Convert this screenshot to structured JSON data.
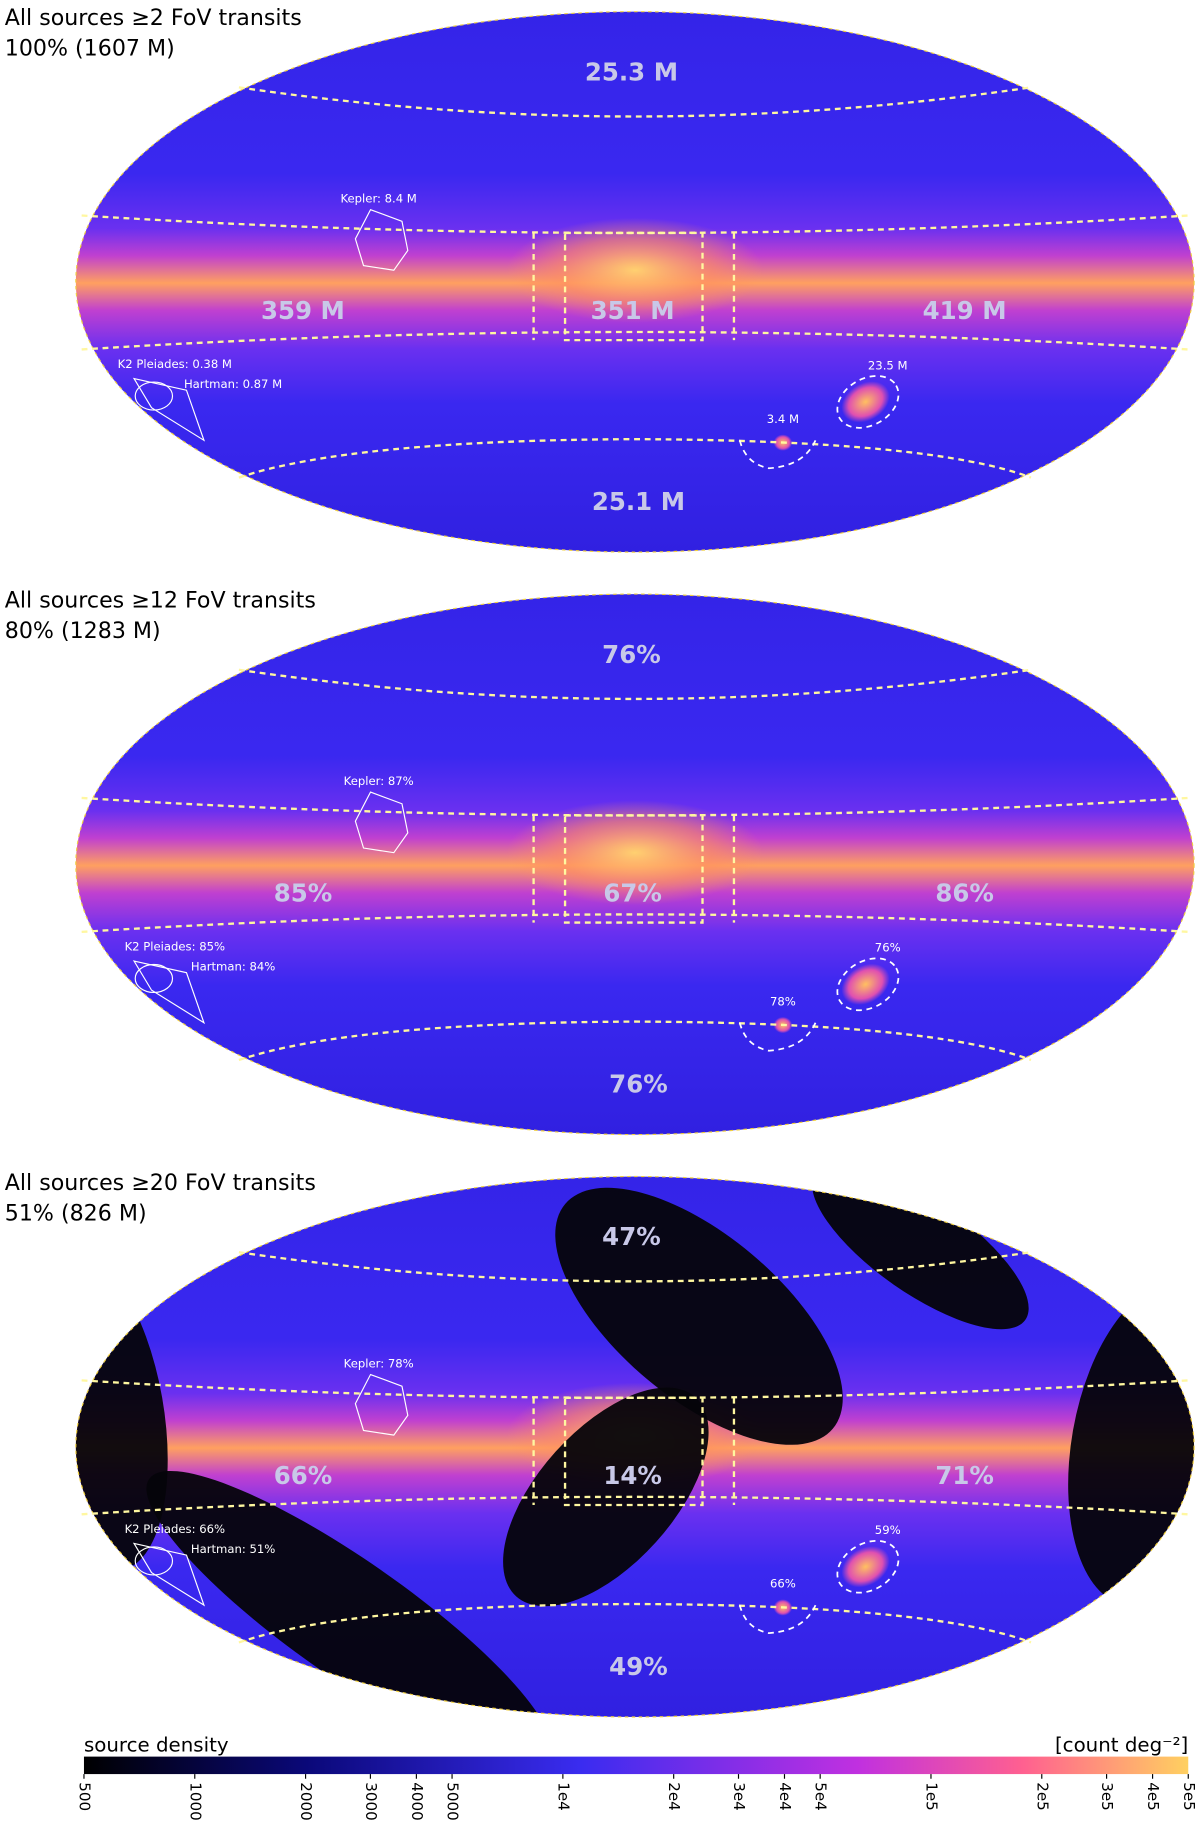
{
  "panels": [
    {
      "title": "All sources ≥2 FoV transits",
      "subtitle": "100% (1607 M)",
      "labels": {
        "north": "25.3 M",
        "south": "25.1 M",
        "left": "359 M",
        "center": "351 M",
        "right": "419 M",
        "lmc": "23.5 M",
        "smc": "3.4 M",
        "kepler": "Kepler: 8.4 M",
        "k2": "K2 Pleiades: 0.38 M",
        "hartman": "Hartman: 0.87 M"
      }
    },
    {
      "title": "All sources ≥12 FoV transits",
      "subtitle": "80% (1283 M)",
      "labels": {
        "north": "76%",
        "south": "76%",
        "left": "85%",
        "center": "67%",
        "right": "86%",
        "lmc": "76%",
        "smc": "78%",
        "kepler": "Kepler: 87%",
        "k2": "K2 Pleiades: 85%",
        "hartman": "Hartman: 84%"
      }
    },
    {
      "title": "All sources ≥20 FoV transits",
      "subtitle": "51% (826 M)",
      "labels": {
        "north": "47%",
        "south": "49%",
        "left": "66%",
        "center": "14%",
        "right": "71%",
        "lmc": "59%",
        "smc": "66%",
        "kepler": "Kepler: 78%",
        "k2": "K2 Pleiades: 66%",
        "hartman": "Hartman: 51%"
      }
    }
  ],
  "colorbar": {
    "label": "source density",
    "unit": "[count deg⁻²]",
    "scale": "log",
    "lim": [
      500,
      500000
    ],
    "ticks": [
      500,
      1000,
      2000,
      3000,
      4000,
      5000,
      {
        "value": 10000,
        "label": "1e4"
      },
      {
        "value": 20000,
        "label": "2e4"
      },
      {
        "value": 30000,
        "label": "3e4"
      },
      {
        "value": 40000,
        "label": "4e4"
      },
      {
        "value": 50000,
        "label": "5e4"
      },
      {
        "value": 100000,
        "label": "1e5"
      },
      {
        "value": 200000,
        "label": "2e5"
      },
      {
        "value": 300000,
        "label": "3e5"
      },
      {
        "value": 400000,
        "label": "4e5"
      },
      {
        "value": 500000,
        "label": "5e5"
      }
    ]
  }
}
